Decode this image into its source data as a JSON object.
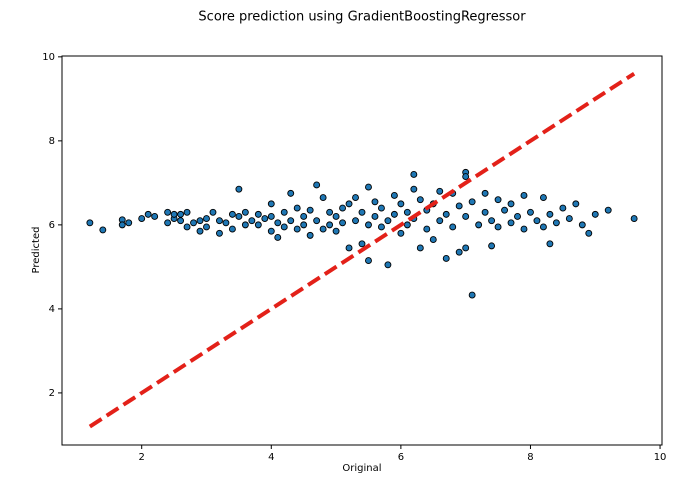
{
  "chart_data": {
    "type": "scatter",
    "title": "Score prediction using GradientBoostingRegressor",
    "xlabel": "Original",
    "ylabel": "Predicted",
    "xlim": [
      0.77,
      10.03
    ],
    "ylim": [
      0.76,
      10.02
    ],
    "xticks": [
      2,
      4,
      6,
      8,
      10
    ],
    "yticks": [
      2,
      4,
      6,
      8,
      10
    ],
    "grid": false,
    "series": [
      {
        "color": "#1f77b4",
        "x": [
          1.2,
          1.4,
          1.7,
          1.7,
          1.8,
          2.0,
          2.1,
          2.2,
          2.4,
          2.4,
          2.5,
          2.5,
          2.6,
          2.6,
          2.7,
          2.7,
          2.8,
          2.9,
          2.9,
          3.0,
          3.0,
          3.1,
          3.2,
          3.2,
          3.3,
          3.4,
          3.4,
          3.5,
          3.5,
          3.6,
          3.6,
          3.7,
          3.8,
          3.8,
          3.9,
          4.0,
          4.0,
          4.0,
          4.1,
          4.1,
          4.2,
          4.2,
          4.3,
          4.3,
          4.4,
          4.4,
          4.5,
          4.5,
          4.6,
          4.6,
          4.7,
          4.7,
          4.8,
          4.8,
          4.9,
          4.9,
          5.0,
          5.0,
          5.1,
          5.1,
          5.2,
          5.2,
          5.3,
          5.3,
          5.4,
          5.4,
          5.5,
          5.5,
          5.5,
          5.6,
          5.6,
          5.7,
          5.7,
          5.8,
          5.8,
          5.9,
          5.9,
          6.0,
          6.0,
          6.1,
          6.1,
          6.2,
          6.2,
          6.2,
          6.3,
          6.3,
          6.4,
          6.4,
          6.5,
          6.5,
          6.6,
          6.6,
          6.7,
          6.7,
          6.8,
          6.8,
          6.9,
          6.9,
          7.0,
          7.0,
          7.0,
          7.0,
          7.1,
          7.1,
          7.2,
          7.3,
          7.3,
          7.4,
          7.4,
          7.5,
          7.5,
          7.6,
          7.7,
          7.7,
          7.8,
          7.9,
          7.9,
          8.0,
          8.1,
          8.2,
          8.2,
          8.3,
          8.3,
          8.4,
          8.5,
          8.6,
          8.7,
          8.8,
          8.9,
          9.0,
          9.2,
          9.6
        ],
        "y": [
          6.05,
          5.88,
          6.12,
          6.0,
          6.05,
          6.15,
          6.25,
          6.2,
          6.3,
          6.05,
          6.15,
          6.25,
          6.1,
          6.25,
          5.95,
          6.3,
          6.05,
          5.85,
          6.1,
          6.15,
          5.95,
          6.3,
          6.1,
          5.8,
          6.05,
          6.25,
          5.9,
          6.85,
          6.2,
          6.0,
          6.3,
          6.1,
          6.25,
          6.0,
          6.15,
          6.5,
          5.85,
          6.2,
          5.7,
          6.05,
          6.3,
          5.95,
          6.75,
          6.1,
          6.4,
          5.9,
          6.2,
          6.0,
          5.75,
          6.35,
          6.95,
          6.1,
          6.65,
          5.9,
          6.3,
          6.0,
          6.2,
          5.85,
          6.4,
          6.05,
          5.45,
          6.5,
          6.65,
          6.1,
          5.55,
          6.3,
          6.9,
          5.15,
          6.0,
          6.55,
          6.2,
          5.95,
          6.4,
          5.05,
          6.1,
          6.7,
          6.25,
          5.8,
          6.5,
          6.3,
          6.0,
          7.2,
          6.85,
          6.15,
          5.45,
          6.6,
          6.35,
          5.9,
          5.65,
          6.5,
          6.8,
          6.1,
          5.2,
          6.25,
          6.75,
          5.95,
          5.35,
          6.45,
          7.25,
          7.15,
          5.45,
          6.2,
          4.33,
          6.55,
          6.0,
          6.75,
          6.3,
          5.5,
          6.1,
          6.6,
          5.95,
          6.35,
          6.5,
          6.05,
          6.2,
          6.7,
          5.9,
          6.3,
          6.1,
          6.65,
          5.95,
          5.55,
          6.25,
          6.05,
          6.4,
          6.15,
          6.5,
          6.0,
          5.8,
          6.25,
          6.35,
          6.15
        ]
      }
    ],
    "reference_line": {
      "color": "#e32119",
      "x": [
        1.2,
        9.6
      ],
      "y": [
        1.2,
        9.6
      ]
    }
  }
}
